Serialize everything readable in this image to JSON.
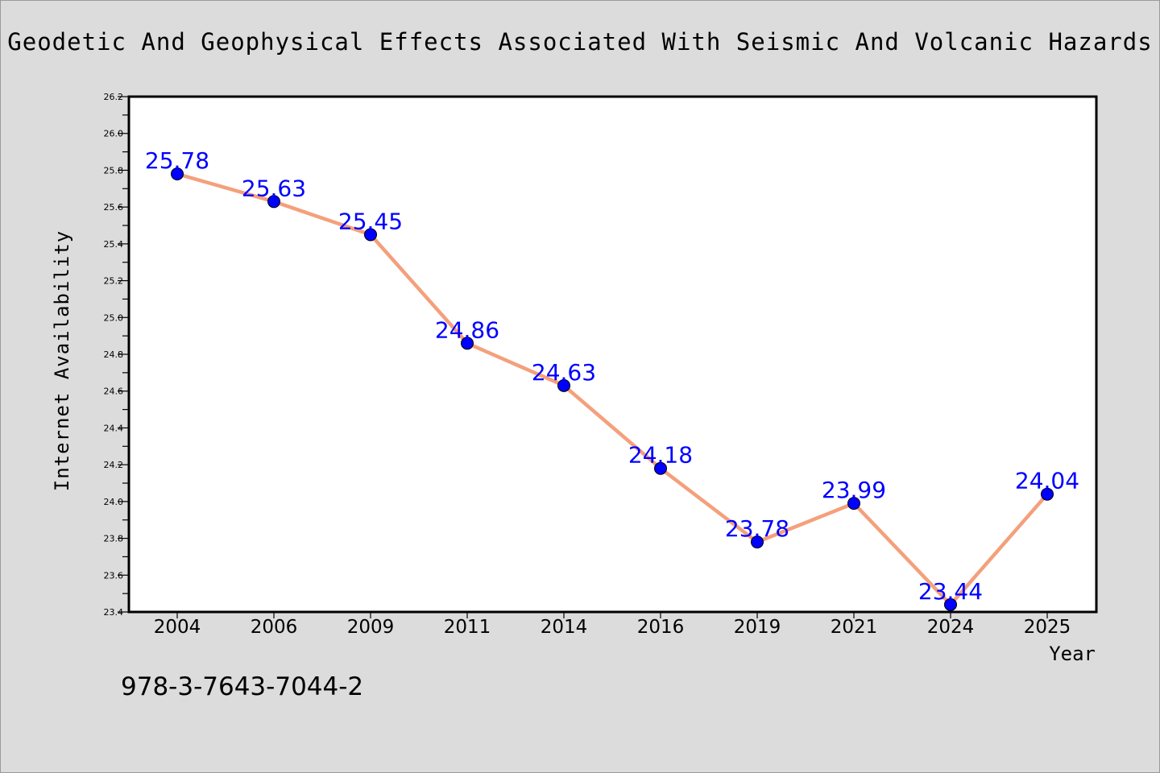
{
  "chart_data": {
    "type": "line",
    "title": "Geodetic And Geophysical Effects Associated With Seismic And Volcanic Hazards",
    "xlabel": "Year",
    "ylabel": "Internet Availability",
    "categories": [
      "2004",
      "2006",
      "2009",
      "2011",
      "2014",
      "2016",
      "2019",
      "2021",
      "2024",
      "2025"
    ],
    "series": [
      {
        "values": [
          25.78,
          25.63,
          25.45,
          24.86,
          24.63,
          24.18,
          23.78,
          23.99,
          23.44,
          24.04
        ]
      }
    ],
    "ylim": [
      23.4,
      26.2
    ],
    "yticks": [
      "23.4",
      "23.6",
      "23.8",
      "24.0",
      "24.2",
      "24.4",
      "24.6",
      "24.8",
      "25.0",
      "25.2",
      "25.4",
      "25.6",
      "25.8",
      "26.0",
      "26.2"
    ],
    "data_labels": [
      "25.78",
      "25.63",
      "25.45",
      "24.86",
      "24.63",
      "24.18",
      "23.78",
      "23.99",
      "23.44",
      "24.04"
    ],
    "line_color": "#f4a07c",
    "marker_color": "#0000ff",
    "label_color": "#0000ff",
    "grid": false,
    "legend": "none"
  },
  "footer": {
    "isbn": "978-3-7643-7044-2"
  }
}
